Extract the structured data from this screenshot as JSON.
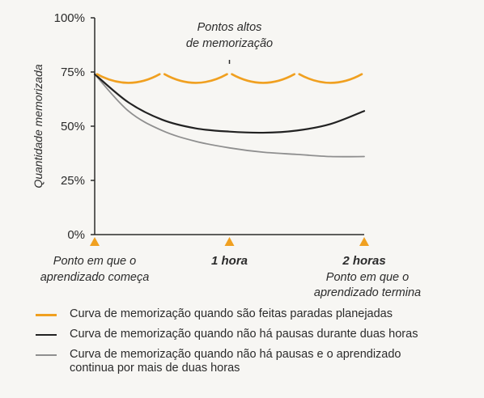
{
  "chart_data": {
    "type": "line",
    "ylabel": "Quantidade memorizada",
    "ylim": [
      0,
      100
    ],
    "yticks": [
      0,
      25,
      50,
      75,
      100
    ],
    "ytick_labels": [
      "0%",
      "25%",
      "50%",
      "75%",
      "100%"
    ],
    "xlim": [
      0,
      2
    ],
    "xticks": [
      {
        "x": 0,
        "label": "Ponto em que o",
        "label2": "aprendizado começa",
        "bold": false
      },
      {
        "x": 1,
        "label": "1 hora",
        "label2": "",
        "bold": true
      },
      {
        "x": 2,
        "label": "2 horas",
        "label2": "",
        "bold": true
      }
    ],
    "xtick_end_note": [
      "Ponto em que o",
      "aprendizado termina"
    ],
    "annotation": {
      "line1": "Pontos altos",
      "line2": "de memorização",
      "x": 1,
      "y": 78
    },
    "series": [
      {
        "name": "Curva de memorização quando são feitas paradas planejadas",
        "color": "#f0a020",
        "style": "scalloped",
        "points": [
          [
            0,
            74
          ],
          [
            0.5,
            74
          ],
          [
            1,
            74
          ],
          [
            1.5,
            74
          ],
          [
            2,
            74
          ]
        ],
        "dip": 4
      },
      {
        "name": "Curva de memorização quando não há pausas durante duas horas",
        "color": "#222222",
        "points": [
          [
            0,
            74
          ],
          [
            0.25,
            61
          ],
          [
            0.5,
            53
          ],
          [
            0.75,
            49
          ],
          [
            1,
            47.5
          ],
          [
            1.25,
            47
          ],
          [
            1.5,
            48
          ],
          [
            1.75,
            51
          ],
          [
            2,
            57
          ]
        ]
      },
      {
        "name": "Curva de memorização quando não há pausas e o aprendizado continua por mais de duas horas",
        "name_line1": "Curva de memorização quando não há pausas e o aprendizado",
        "name_line2": "continua por mais de duas horas",
        "color": "#8f8f8f",
        "points": [
          [
            0,
            74
          ],
          [
            0.25,
            57
          ],
          [
            0.5,
            48
          ],
          [
            0.75,
            43
          ],
          [
            1,
            40
          ],
          [
            1.25,
            38
          ],
          [
            1.5,
            37
          ],
          [
            1.75,
            36
          ],
          [
            2,
            36
          ]
        ]
      }
    ],
    "marker_color": "#f0a020",
    "grid": false
  }
}
